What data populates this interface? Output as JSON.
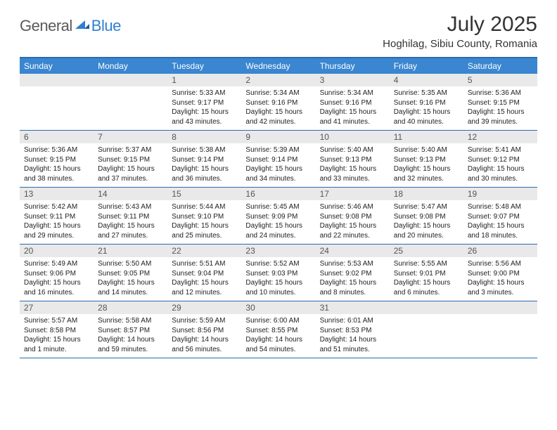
{
  "logo": {
    "part1": "General",
    "part2": "Blue"
  },
  "title": "July 2025",
  "location": "Hoghilag, Sibiu County, Romania",
  "colors": {
    "header_bg": "#3a86d0",
    "border": "#2a6bb0",
    "daynum_bg": "#e9e9e9",
    "logo_gray": "#5a5a5a",
    "logo_blue": "#2f7fd1"
  },
  "day_labels": [
    "Sunday",
    "Monday",
    "Tuesday",
    "Wednesday",
    "Thursday",
    "Friday",
    "Saturday"
  ],
  "weeks": [
    [
      null,
      null,
      {
        "n": "1",
        "sr": "5:33 AM",
        "ss": "9:17 PM",
        "dl": "15 hours and 43 minutes."
      },
      {
        "n": "2",
        "sr": "5:34 AM",
        "ss": "9:16 PM",
        "dl": "15 hours and 42 minutes."
      },
      {
        "n": "3",
        "sr": "5:34 AM",
        "ss": "9:16 PM",
        "dl": "15 hours and 41 minutes."
      },
      {
        "n": "4",
        "sr": "5:35 AM",
        "ss": "9:16 PM",
        "dl": "15 hours and 40 minutes."
      },
      {
        "n": "5",
        "sr": "5:36 AM",
        "ss": "9:15 PM",
        "dl": "15 hours and 39 minutes."
      }
    ],
    [
      {
        "n": "6",
        "sr": "5:36 AM",
        "ss": "9:15 PM",
        "dl": "15 hours and 38 minutes."
      },
      {
        "n": "7",
        "sr": "5:37 AM",
        "ss": "9:15 PM",
        "dl": "15 hours and 37 minutes."
      },
      {
        "n": "8",
        "sr": "5:38 AM",
        "ss": "9:14 PM",
        "dl": "15 hours and 36 minutes."
      },
      {
        "n": "9",
        "sr": "5:39 AM",
        "ss": "9:14 PM",
        "dl": "15 hours and 34 minutes."
      },
      {
        "n": "10",
        "sr": "5:40 AM",
        "ss": "9:13 PM",
        "dl": "15 hours and 33 minutes."
      },
      {
        "n": "11",
        "sr": "5:40 AM",
        "ss": "9:13 PM",
        "dl": "15 hours and 32 minutes."
      },
      {
        "n": "12",
        "sr": "5:41 AM",
        "ss": "9:12 PM",
        "dl": "15 hours and 30 minutes."
      }
    ],
    [
      {
        "n": "13",
        "sr": "5:42 AM",
        "ss": "9:11 PM",
        "dl": "15 hours and 29 minutes."
      },
      {
        "n": "14",
        "sr": "5:43 AM",
        "ss": "9:11 PM",
        "dl": "15 hours and 27 minutes."
      },
      {
        "n": "15",
        "sr": "5:44 AM",
        "ss": "9:10 PM",
        "dl": "15 hours and 25 minutes."
      },
      {
        "n": "16",
        "sr": "5:45 AM",
        "ss": "9:09 PM",
        "dl": "15 hours and 24 minutes."
      },
      {
        "n": "17",
        "sr": "5:46 AM",
        "ss": "9:08 PM",
        "dl": "15 hours and 22 minutes."
      },
      {
        "n": "18",
        "sr": "5:47 AM",
        "ss": "9:08 PM",
        "dl": "15 hours and 20 minutes."
      },
      {
        "n": "19",
        "sr": "5:48 AM",
        "ss": "9:07 PM",
        "dl": "15 hours and 18 minutes."
      }
    ],
    [
      {
        "n": "20",
        "sr": "5:49 AM",
        "ss": "9:06 PM",
        "dl": "15 hours and 16 minutes."
      },
      {
        "n": "21",
        "sr": "5:50 AM",
        "ss": "9:05 PM",
        "dl": "15 hours and 14 minutes."
      },
      {
        "n": "22",
        "sr": "5:51 AM",
        "ss": "9:04 PM",
        "dl": "15 hours and 12 minutes."
      },
      {
        "n": "23",
        "sr": "5:52 AM",
        "ss": "9:03 PM",
        "dl": "15 hours and 10 minutes."
      },
      {
        "n": "24",
        "sr": "5:53 AM",
        "ss": "9:02 PM",
        "dl": "15 hours and 8 minutes."
      },
      {
        "n": "25",
        "sr": "5:55 AM",
        "ss": "9:01 PM",
        "dl": "15 hours and 6 minutes."
      },
      {
        "n": "26",
        "sr": "5:56 AM",
        "ss": "9:00 PM",
        "dl": "15 hours and 3 minutes."
      }
    ],
    [
      {
        "n": "27",
        "sr": "5:57 AM",
        "ss": "8:58 PM",
        "dl": "15 hours and 1 minute."
      },
      {
        "n": "28",
        "sr": "5:58 AM",
        "ss": "8:57 PM",
        "dl": "14 hours and 59 minutes."
      },
      {
        "n": "29",
        "sr": "5:59 AM",
        "ss": "8:56 PM",
        "dl": "14 hours and 56 minutes."
      },
      {
        "n": "30",
        "sr": "6:00 AM",
        "ss": "8:55 PM",
        "dl": "14 hours and 54 minutes."
      },
      {
        "n": "31",
        "sr": "6:01 AM",
        "ss": "8:53 PM",
        "dl": "14 hours and 51 minutes."
      },
      null,
      null
    ]
  ],
  "labels": {
    "sunrise": "Sunrise:",
    "sunset": "Sunset:",
    "daylight": "Daylight:"
  }
}
